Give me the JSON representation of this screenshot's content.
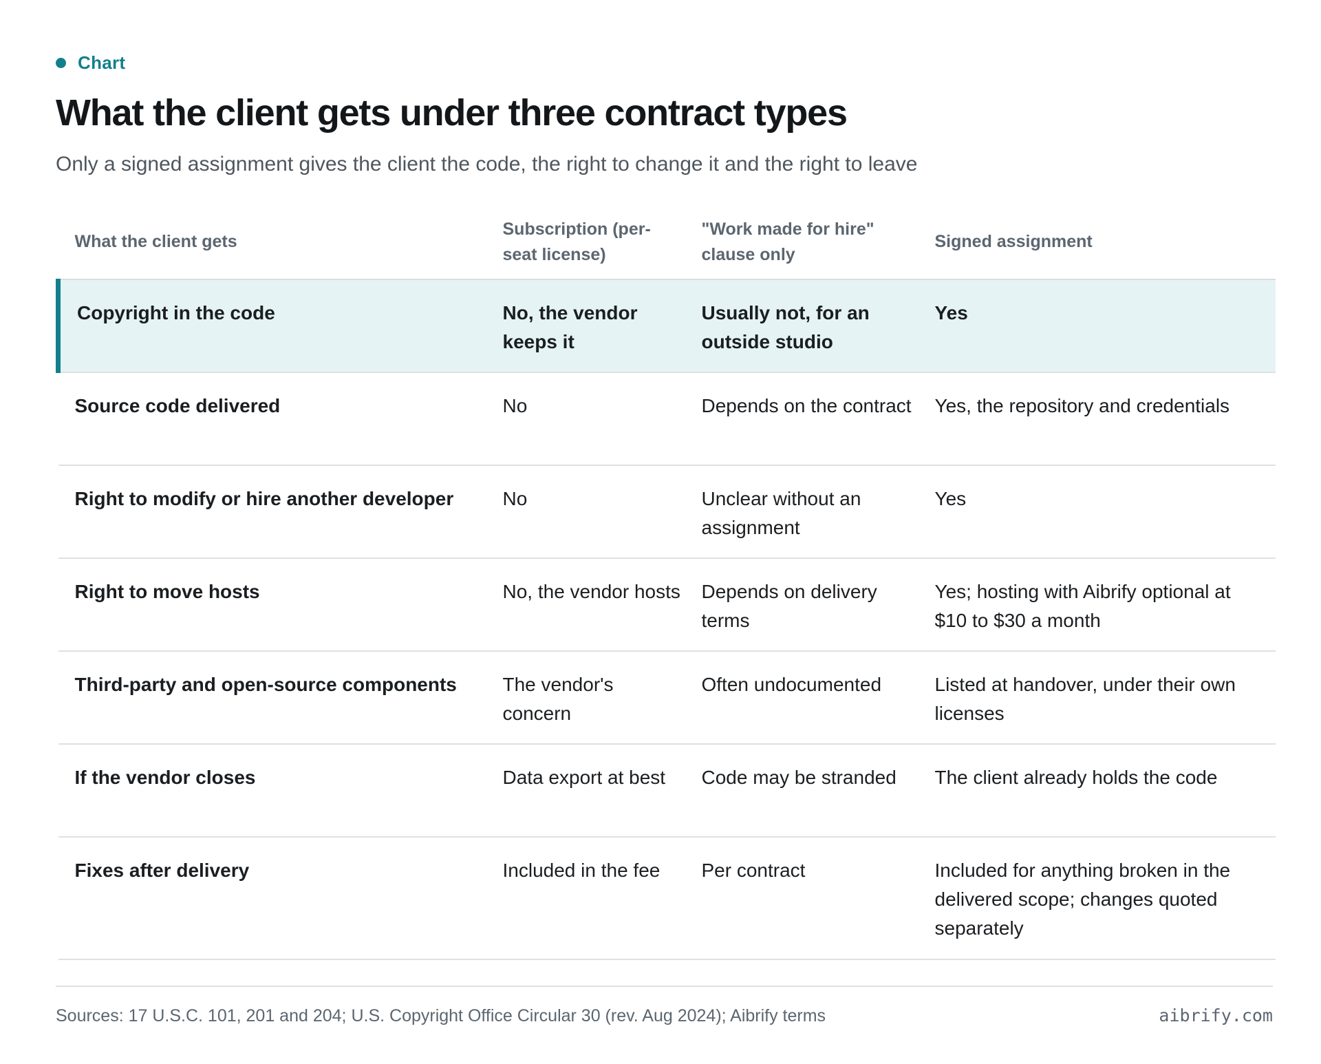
{
  "eyebrow": "Chart",
  "title": "What the client gets under three contract types",
  "subtitle": "Only a signed assignment gives the client the code, the right to change it and the right to leave",
  "accent_color": "#137f8c",
  "highlight_color": "#e5f3f4",
  "chart_data": {
    "type": "table",
    "columns": [
      "What the client gets",
      "Subscription (per-seat license)",
      "\"Work made for hire\" clause only",
      "Signed assignment"
    ],
    "rows": [
      [
        "Copyright in the code",
        "No, the vendor keeps it",
        "Usually not, for an outside studio",
        "Yes"
      ],
      [
        "Source code delivered",
        "No",
        "Depends on the contract",
        "Yes, the repository and credentials"
      ],
      [
        "Right to modify or hire another developer",
        "No",
        "Unclear without an assignment",
        "Yes"
      ],
      [
        "Right to move hosts",
        "No, the vendor hosts",
        "Depends on delivery terms",
        "Yes; hosting with Aibrify optional at $10 to $30 a month"
      ],
      [
        "Third-party and open-source components",
        "The vendor's concern",
        "Often undocumented",
        "Listed at handover, under their own licenses"
      ],
      [
        "If the vendor closes",
        "Data export at best",
        "Code may be stranded",
        "The client already holds the code"
      ],
      [
        "Fixes after delivery",
        "Included in the fee",
        "Per contract",
        "Included for anything broken in the delivered scope; changes quoted separately"
      ]
    ]
  },
  "footer": {
    "sources": "Sources: 17 U.S.C. 101, 201 and 204; U.S. Copyright Office Circular 30 (rev. Aug 2024); Aibrify terms",
    "brand": "aibrify.com"
  }
}
